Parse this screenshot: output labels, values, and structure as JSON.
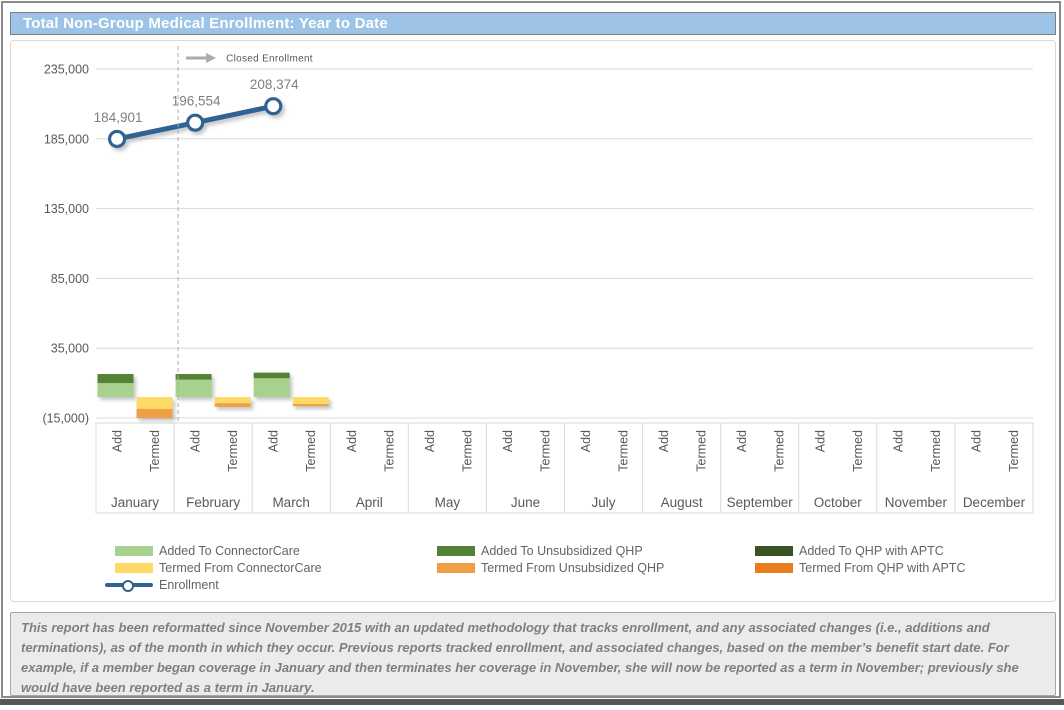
{
  "title": "Total Non-Group Medical Enrollment: Year to Date",
  "colors": {
    "title_bar_bg": "#9DC3E6",
    "title_text": "#FFFFFF",
    "gridline": "#D9D9D9",
    "axis_text": "#595959",
    "data_label_text": "#7F7F7F",
    "enrollment_line": "#2E6393",
    "footnote_bg": "#EBEBEB",
    "bottom_bar": "#55565A"
  },
  "chart_data": {
    "type": "combo-bar-line",
    "title": "Total Non-Group Medical Enrollment: Year to Date",
    "months": [
      "January",
      "February",
      "March",
      "April",
      "May",
      "June",
      "July",
      "August",
      "September",
      "October",
      "November",
      "December"
    ],
    "column_labels": [
      "Add",
      "Termed"
    ],
    "ylim": [
      -15000,
      235000
    ],
    "y_ticks": [
      235000,
      185000,
      135000,
      85000,
      35000,
      -15000
    ],
    "y_tick_labels": [
      "235,000",
      "185,000",
      "135,000",
      "85,000",
      "35,000",
      "(15,000)"
    ],
    "grid": "horizontal",
    "annotation": {
      "label": "Closed Enrollment",
      "divider_after_month_index": 0
    },
    "bar_series": [
      {
        "name": "Added To ConnectorCare",
        "column": "Add",
        "color": "#A9D18E",
        "values": [
          10000,
          12500,
          13500,
          0,
          0,
          0,
          0,
          0,
          0,
          0,
          0,
          0
        ]
      },
      {
        "name": "Added To Unsubsidized QHP",
        "column": "Add",
        "color": "#548235",
        "values": [
          6500,
          4000,
          4000,
          0,
          0,
          0,
          0,
          0,
          0,
          0,
          0,
          0
        ]
      },
      {
        "name": "Added To QHP with APTC",
        "column": "Add",
        "color": "#3A5323",
        "values": [
          0,
          0,
          0,
          0,
          0,
          0,
          0,
          0,
          0,
          0,
          0,
          0
        ]
      },
      {
        "name": "Termed From ConnectorCare",
        "column": "Termed",
        "color": "#FFD966",
        "values": [
          -8500,
          -4500,
          -5000,
          0,
          0,
          0,
          0,
          0,
          0,
          0,
          0,
          0
        ]
      },
      {
        "name": "Termed From Unsubsidized QHP",
        "column": "Termed",
        "color": "#EF9F45",
        "values": [
          -6500,
          -2500,
          -1500,
          0,
          0,
          0,
          0,
          0,
          0,
          0,
          0,
          0
        ]
      },
      {
        "name": "Termed From QHP with APTC",
        "column": "Termed",
        "color": "#E87E1E",
        "values": [
          0,
          0,
          0,
          0,
          0,
          0,
          0,
          0,
          0,
          0,
          0,
          0
        ]
      }
    ],
    "line_series": {
      "name": "Enrollment",
      "color": "#2E6393",
      "values": [
        184901,
        196554,
        208374
      ],
      "labels": [
        "184,901",
        "196,554",
        "208,374"
      ]
    },
    "legend_position": "bottom"
  },
  "legend": {
    "items": [
      {
        "label": "Added To ConnectorCare",
        "color": "#A9D18E",
        "type": "swatch",
        "col": 1,
        "row": 1
      },
      {
        "label": "Termed From ConnectorCare",
        "color": "#FFD966",
        "type": "swatch",
        "col": 1,
        "row": 2
      },
      {
        "label": "Enrollment",
        "color": "#2E6393",
        "type": "line",
        "col": 1,
        "row": 3
      },
      {
        "label": "Added To Unsubsidized QHP",
        "color": "#548235",
        "type": "swatch",
        "col": 2,
        "row": 1
      },
      {
        "label": "Termed From Unsubsidized QHP",
        "color": "#EF9F45",
        "type": "swatch",
        "col": 2,
        "row": 2
      },
      {
        "label": "Added To QHP with APTC",
        "color": "#3A5323",
        "type": "swatch",
        "col": 3,
        "row": 1
      },
      {
        "label": "Termed From QHP with APTC",
        "color": "#E87E1E",
        "type": "swatch",
        "col": 3,
        "row": 2
      }
    ]
  },
  "footnote": {
    "text": "This report has been reformatted since November 2015 with an updated methodology that tracks enrollment, and any associated changes (i.e., additions and terminations), as of the month in which they occur.  Previous reports tracked enrollment, and associated changes, based on the member’s benefit start date.  For example, if a member began coverage in January and then terminates her coverage in November, she will now be reported as a term in November; previously she would have been reported as a term in January."
  }
}
